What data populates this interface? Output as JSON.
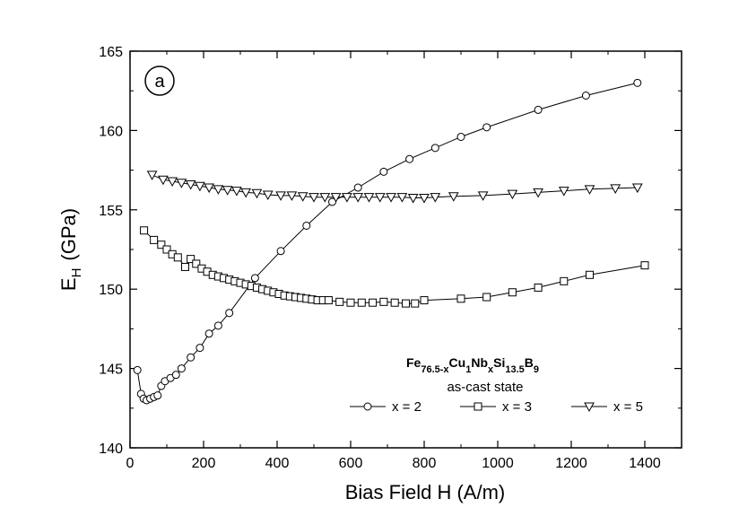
{
  "chart_data": {
    "type": "line",
    "panel_label": "a",
    "xlabel": "Bias Field H (A/m)",
    "ylabel": {
      "main": "E",
      "sub": "H",
      "unit": "(GPa)"
    },
    "xlim": [
      0,
      1500
    ],
    "ylim": [
      140,
      165
    ],
    "x_ticks": [
      0,
      200,
      400,
      600,
      800,
      1000,
      1200,
      1400
    ],
    "y_ticks": [
      140,
      145,
      150,
      155,
      160,
      165
    ],
    "grid": false,
    "legend_position": "bottom-right",
    "annotation": {
      "formula": [
        {
          "text": "Fe",
          "sub": "76.5-x"
        },
        {
          "text": "Cu",
          "sub": "1"
        },
        {
          "text": "Nb",
          "sub": "x"
        },
        {
          "text": "Si",
          "sub": "13.5"
        },
        {
          "text": "B",
          "sub": "9"
        }
      ],
      "state": "as-cast state"
    },
    "series": [
      {
        "name": "x = 2",
        "marker": "circle",
        "points": [
          [
            20,
            144.9
          ],
          [
            30,
            143.4
          ],
          [
            37,
            143.1
          ],
          [
            45,
            143.0
          ],
          [
            55,
            143.1
          ],
          [
            65,
            143.2
          ],
          [
            75,
            143.3
          ],
          [
            85,
            143.9
          ],
          [
            95,
            144.2
          ],
          [
            110,
            144.4
          ],
          [
            125,
            144.6
          ],
          [
            140,
            145.0
          ],
          [
            165,
            145.7
          ],
          [
            190,
            146.3
          ],
          [
            215,
            147.2
          ],
          [
            240,
            147.7
          ],
          [
            270,
            148.5
          ],
          [
            340,
            150.7
          ],
          [
            410,
            152.4
          ],
          [
            480,
            154.0
          ],
          [
            550,
            155.5
          ],
          [
            620,
            156.4
          ],
          [
            690,
            157.4
          ],
          [
            760,
            158.2
          ],
          [
            830,
            158.9
          ],
          [
            900,
            159.6
          ],
          [
            970,
            160.2
          ],
          [
            1110,
            161.3
          ],
          [
            1240,
            162.2
          ],
          [
            1380,
            163.0
          ]
        ]
      },
      {
        "name": "x = 3",
        "marker": "square",
        "points": [
          [
            38,
            153.7
          ],
          [
            65,
            153.1
          ],
          [
            85,
            152.8
          ],
          [
            100,
            152.5
          ],
          [
            115,
            152.2
          ],
          [
            130,
            152.0
          ],
          [
            150,
            151.4
          ],
          [
            165,
            151.9
          ],
          [
            180,
            151.6
          ],
          [
            195,
            151.3
          ],
          [
            210,
            151.1
          ],
          [
            225,
            150.9
          ],
          [
            240,
            150.8
          ],
          [
            255,
            150.7
          ],
          [
            270,
            150.6
          ],
          [
            285,
            150.5
          ],
          [
            300,
            150.4
          ],
          [
            315,
            150.3
          ],
          [
            330,
            150.2
          ],
          [
            345,
            150.1
          ],
          [
            360,
            150.0
          ],
          [
            375,
            149.9
          ],
          [
            390,
            149.8
          ],
          [
            405,
            149.7
          ],
          [
            420,
            149.6
          ],
          [
            435,
            149.55
          ],
          [
            450,
            149.5
          ],
          [
            465,
            149.45
          ],
          [
            480,
            149.4
          ],
          [
            495,
            149.35
          ],
          [
            510,
            149.3
          ],
          [
            525,
            149.3
          ],
          [
            540,
            149.3
          ],
          [
            570,
            149.2
          ],
          [
            600,
            149.15
          ],
          [
            630,
            149.15
          ],
          [
            660,
            149.15
          ],
          [
            690,
            149.2
          ],
          [
            720,
            149.15
          ],
          [
            750,
            149.1
          ],
          [
            775,
            149.1
          ],
          [
            800,
            149.3
          ],
          [
            900,
            149.4
          ],
          [
            970,
            149.5
          ],
          [
            1040,
            149.8
          ],
          [
            1110,
            150.1
          ],
          [
            1180,
            150.5
          ],
          [
            1250,
            150.9
          ],
          [
            1400,
            151.5
          ]
        ]
      },
      {
        "name": "x = 5",
        "marker": "triangle-down",
        "points": [
          [
            60,
            157.2
          ],
          [
            90,
            156.9
          ],
          [
            115,
            156.8
          ],
          [
            140,
            156.7
          ],
          [
            165,
            156.6
          ],
          [
            190,
            156.5
          ],
          [
            215,
            156.4
          ],
          [
            240,
            156.3
          ],
          [
            265,
            156.25
          ],
          [
            290,
            156.2
          ],
          [
            315,
            156.1
          ],
          [
            345,
            156.05
          ],
          [
            375,
            155.95
          ],
          [
            410,
            155.9
          ],
          [
            440,
            155.9
          ],
          [
            470,
            155.85
          ],
          [
            500,
            155.8
          ],
          [
            530,
            155.8
          ],
          [
            560,
            155.8
          ],
          [
            590,
            155.8
          ],
          [
            620,
            155.8
          ],
          [
            650,
            155.8
          ],
          [
            680,
            155.8
          ],
          [
            710,
            155.8
          ],
          [
            740,
            155.8
          ],
          [
            770,
            155.75
          ],
          [
            800,
            155.75
          ],
          [
            830,
            155.8
          ],
          [
            880,
            155.85
          ],
          [
            960,
            155.9
          ],
          [
            1040,
            156.0
          ],
          [
            1110,
            156.1
          ],
          [
            1180,
            156.2
          ],
          [
            1250,
            156.3
          ],
          [
            1320,
            156.35
          ],
          [
            1380,
            156.4
          ]
        ]
      }
    ]
  }
}
